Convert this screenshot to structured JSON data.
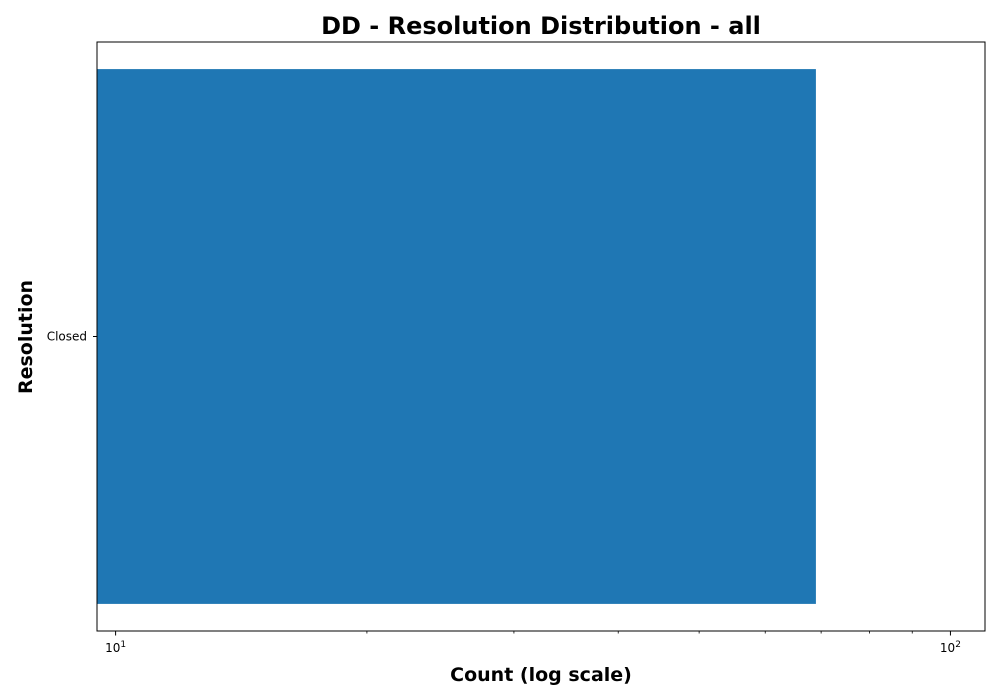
{
  "chart_data": {
    "type": "bar",
    "orientation": "horizontal",
    "title": "DD - Resolution Distribution - all",
    "xlabel": "Count (log scale)",
    "ylabel": "Resolution",
    "x_scale": "log",
    "xlim": [
      9.5,
      110
    ],
    "x_major_ticks": [
      {
        "value": 10,
        "base": "10",
        "exp": "1"
      },
      {
        "value": 100,
        "base": "10",
        "exp": "2"
      }
    ],
    "categories": [
      "Closed"
    ],
    "values": [
      69
    ],
    "colors": {
      "bar": "#1f77b4",
      "axes": "#000000",
      "background": "#ffffff"
    }
  }
}
